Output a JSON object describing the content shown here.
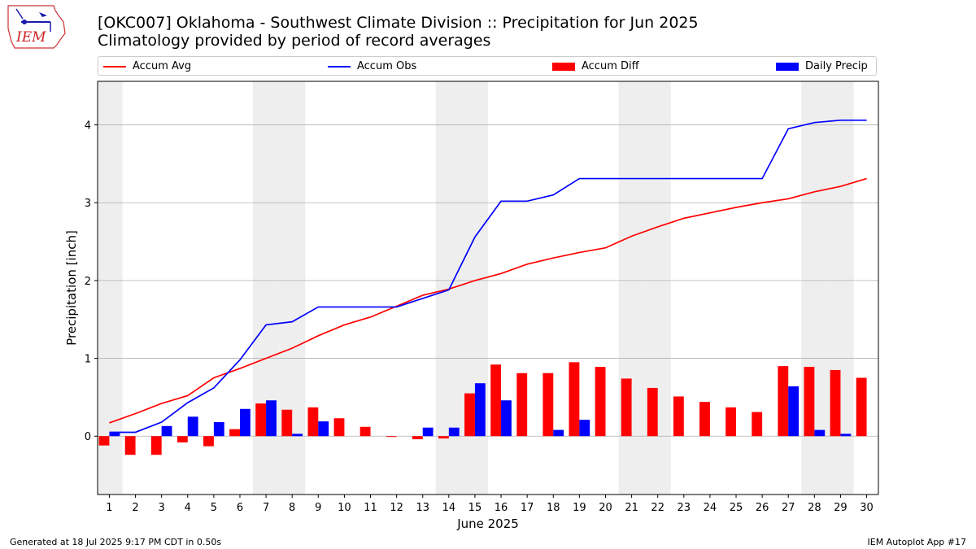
{
  "header": {
    "title": "[OKC007] Oklahoma - Southwest Climate Division :: Precipitation for Jun 2025",
    "subtitle": "Climatology provided by period of record averages",
    "logo_text": "IEM"
  },
  "footer": {
    "generated": "Generated at 18 Jul 2025 9:17 PM CDT in 0.50s",
    "app": "IEM Autoplot App #17"
  },
  "colors": {
    "avg": "#ff0000",
    "obs": "#0000ff",
    "diff": "#ff0000",
    "daily": "#0000ff",
    "weekend_band": "#eeeeee",
    "grid": "#b0b0b0"
  },
  "chart_data": {
    "type": "bar",
    "xlabel": "June 2025",
    "ylabel": "Precipitation [inch]",
    "ylim": [
      -0.75,
      4.56
    ],
    "yticks": [
      0,
      1,
      2,
      3,
      4
    ],
    "grid": "horizontal",
    "legend_placement": "top",
    "x": [
      1,
      2,
      3,
      4,
      5,
      6,
      7,
      8,
      9,
      10,
      11,
      12,
      13,
      14,
      15,
      16,
      17,
      18,
      19,
      20,
      21,
      22,
      23,
      24,
      25,
      26,
      27,
      28,
      29,
      30
    ],
    "weekend_days": [
      1,
      7,
      8,
      14,
      15,
      21,
      22,
      28,
      29
    ],
    "series": [
      {
        "name": "Accum Avg",
        "kind": "line",
        "values": [
          0.17,
          0.29,
          0.42,
          0.52,
          0.75,
          0.87,
          1.0,
          1.13,
          1.29,
          1.43,
          1.53,
          1.67,
          1.81,
          1.89,
          2.0,
          2.09,
          2.21,
          2.29,
          2.36,
          2.42,
          2.57,
          2.69,
          2.8,
          2.87,
          2.94,
          3.0,
          3.05,
          3.14,
          3.21,
          3.31
        ]
      },
      {
        "name": "Accum Obs",
        "kind": "line",
        "values": [
          0.05,
          0.05,
          0.18,
          0.43,
          0.62,
          0.98,
          1.43,
          1.47,
          1.66,
          1.66,
          1.66,
          1.66,
          1.77,
          1.88,
          2.56,
          3.02,
          3.02,
          3.1,
          3.31,
          3.31,
          3.31,
          3.31,
          3.31,
          3.31,
          3.31,
          3.31,
          3.95,
          4.03,
          4.06,
          4.06
        ]
      },
      {
        "name": "Accum Diff",
        "kind": "bar",
        "values": [
          -0.12,
          -0.24,
          -0.24,
          -0.08,
          -0.13,
          0.09,
          0.42,
          0.34,
          0.37,
          0.23,
          0.12,
          -0.01,
          -0.04,
          -0.03,
          0.55,
          0.92,
          0.81,
          0.81,
          0.95,
          0.89,
          0.74,
          0.62,
          0.51,
          0.44,
          0.37,
          0.31,
          0.9,
          0.89,
          0.85,
          0.75
        ]
      },
      {
        "name": "Daily Precip",
        "kind": "bar",
        "values": [
          0.05,
          0,
          0.13,
          0.25,
          0.18,
          0.35,
          0.46,
          0.03,
          0.19,
          0,
          0,
          0,
          0.11,
          0.11,
          0.68,
          0.46,
          0,
          0.08,
          0.21,
          0,
          0,
          0,
          0,
          0,
          0,
          0,
          0.64,
          0.08,
          0.03,
          0
        ]
      }
    ]
  }
}
